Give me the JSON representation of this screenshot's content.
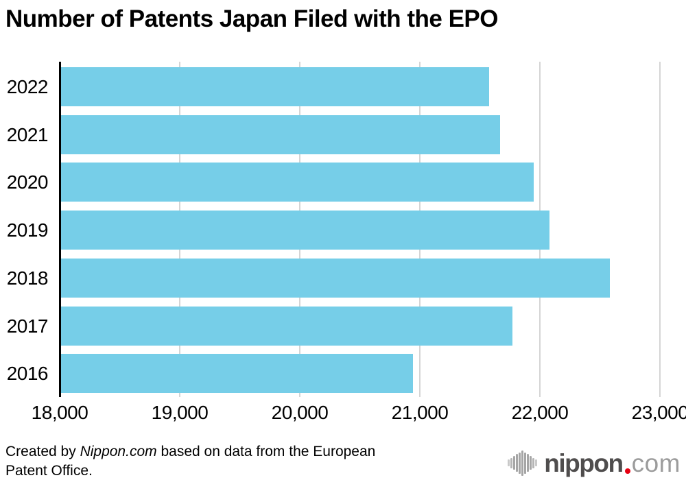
{
  "page": {
    "title": "Number of Patents Japan Filed with the EPO"
  },
  "chart_data": {
    "type": "bar",
    "orientation": "horizontal",
    "title": "Number of Patents Japan Filed with the EPO",
    "categories": [
      "2022",
      "2021",
      "2020",
      "2019",
      "2018",
      "2017",
      "2016"
    ],
    "values": [
      21575,
      21670,
      21950,
      22080,
      22585,
      21770,
      20940
    ],
    "xlabel": "",
    "ylabel": "",
    "xlim": [
      18000,
      23000
    ],
    "xticks": [
      18000,
      19000,
      20000,
      21000,
      22000,
      23000
    ],
    "xtick_labels": [
      "18,000",
      "19,000",
      "20,000",
      "21,000",
      "22,000",
      "23,000"
    ],
    "grid": true,
    "legend": false,
    "bar_color": "#76CEE8",
    "gridline_color": "#d5d5d5",
    "axis_color": "#000000"
  },
  "footer": {
    "credit": {
      "prefix": "Created by ",
      "source": "Nippon.com",
      "suffix": " based on data from the European Patent Office."
    },
    "logo": {
      "icon": "waveform-bars-icon",
      "name": "nippon",
      "dot": ".",
      "tld": "com",
      "name_color": "#4f4d4d",
      "tld_color": "#9c9c9c",
      "dot_color": "#e60012",
      "icon_color": "#a6a6a6"
    }
  }
}
